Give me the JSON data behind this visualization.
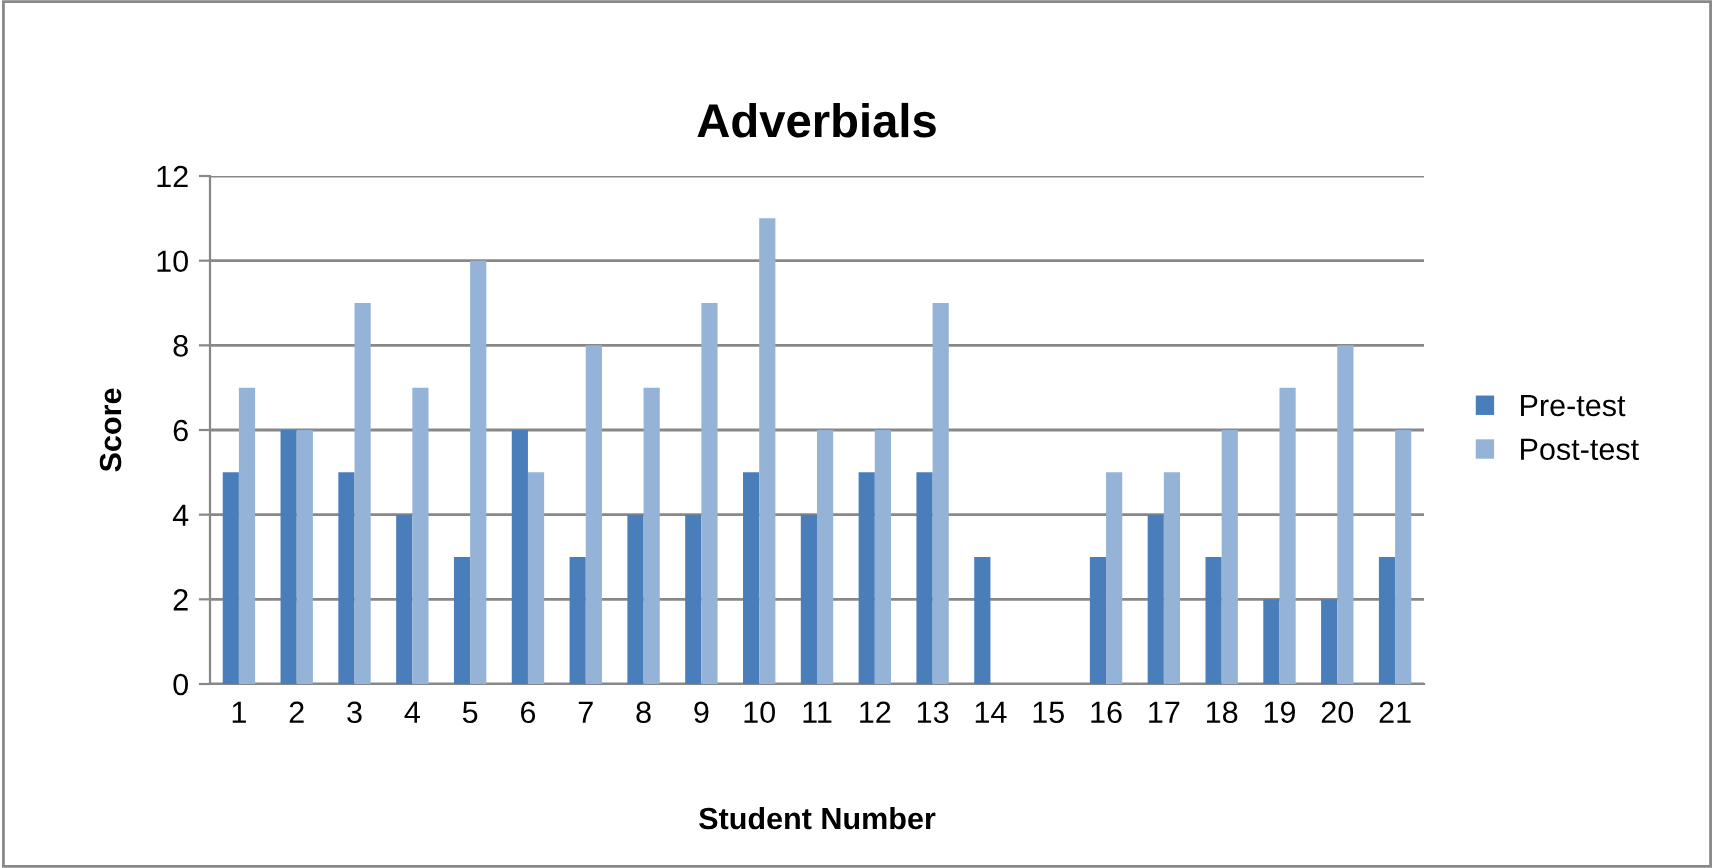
{
  "chart_data": {
    "type": "bar",
    "title": "Adverbials",
    "xlabel": "Student Number",
    "ylabel": "Score",
    "categories": [
      "1",
      "2",
      "3",
      "4",
      "5",
      "6",
      "7",
      "8",
      "9",
      "10",
      "11",
      "12",
      "13",
      "14",
      "15",
      "16",
      "17",
      "18",
      "19",
      "20",
      "21"
    ],
    "series": [
      {
        "name": "Pre-test",
        "color": "#4a7ebb",
        "values": [
          5,
          6,
          5,
          4,
          3,
          6,
          3,
          4,
          4,
          5,
          4,
          5,
          5,
          3,
          0,
          3,
          4,
          3,
          2,
          2,
          3
        ]
      },
      {
        "name": "Post-test",
        "color": "#95b3d7",
        "values": [
          7,
          6,
          9,
          7,
          10,
          5,
          8,
          7,
          9,
          11,
          6,
          6,
          9,
          0,
          0,
          5,
          5,
          6,
          7,
          8,
          6
        ]
      }
    ],
    "ylim": [
      0,
      12
    ],
    "yticks": [
      0,
      2,
      4,
      6,
      8,
      10,
      12
    ],
    "grid": "y",
    "legend": "right"
  }
}
